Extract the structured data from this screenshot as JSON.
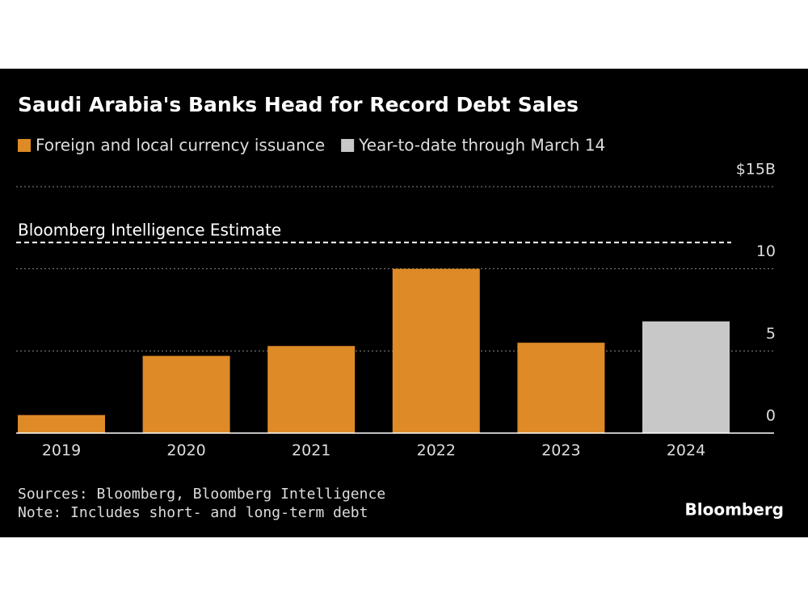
{
  "chart_data": {
    "type": "bar",
    "title": "Saudi Arabia's Banks Head for Record Debt Sales",
    "categories": [
      "2019",
      "2020",
      "2021",
      "2022",
      "2023",
      "2024"
    ],
    "series": [
      {
        "name": "Foreign and local currency issuance",
        "color": "#dd8a27",
        "values": [
          1.1,
          4.7,
          5.3,
          10.0,
          5.5,
          null
        ]
      },
      {
        "name": "Year-to-date through March 14",
        "color": "#c8c8c8",
        "values": [
          null,
          null,
          null,
          null,
          null,
          6.8
        ]
      }
    ],
    "ylim": [
      0,
      15
    ],
    "yticks": [
      0,
      5,
      10,
      {
        "value": 15,
        "label": "$15B"
      }
    ],
    "grid": true,
    "annotations": [
      {
        "label": "Bloomberg Intelligence Estimate",
        "value": 11.6
      }
    ],
    "sources": "Sources: Bloomberg, Bloomberg Intelligence",
    "note": "Note: Includes short- and long-term debt",
    "brand": "Bloomberg"
  }
}
